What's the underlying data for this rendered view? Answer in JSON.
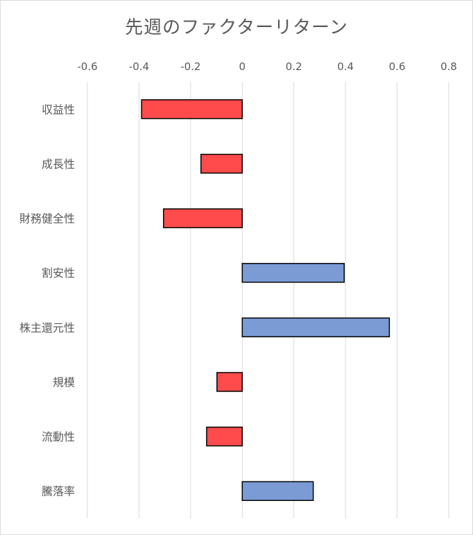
{
  "chart_data": {
    "type": "bar",
    "orientation": "horizontal",
    "title": "先週のファクターリターン",
    "xlabel": "",
    "ylabel": "",
    "xlim": [
      -0.6,
      0.8
    ],
    "x_ticks": [
      -0.6,
      -0.4,
      -0.2,
      0,
      0.2,
      0.4,
      0.6,
      0.8
    ],
    "x_tick_labels": [
      "-0.6",
      "-0.4",
      "-0.2",
      "0",
      "0.2",
      "0.4",
      "0.6",
      "0.8"
    ],
    "x_axis_position": "top",
    "grid": "vertical",
    "legend": "none",
    "categories": [
      "収益性",
      "成長性",
      "財務健全性",
      "割安性",
      "株主還元性",
      "規模",
      "流動性",
      "騰落率"
    ],
    "values": [
      -0.39,
      -0.16,
      -0.305,
      0.395,
      0.57,
      -0.098,
      -0.138,
      0.275
    ],
    "colors": {
      "negative": "#ff4b4b",
      "positive": "#7b9bd5",
      "bar_border": "#000000",
      "grid": "#d9d9d9",
      "text": "#595959"
    }
  }
}
